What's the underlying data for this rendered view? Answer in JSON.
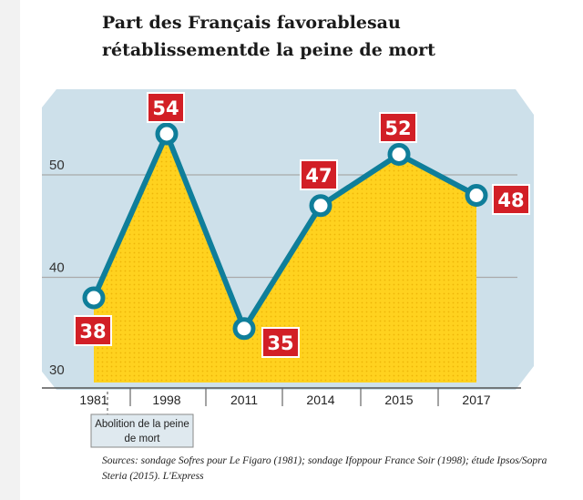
{
  "title": "Part des Français favorablesau rétablissementde la peine de mort",
  "source": "Sources: sondage Sofres pour Le Figaro (1981); sondage Ifoppour France Soir (1998); étude Ipsos/Sopra Steria (2015). L'Express",
  "colors": {
    "panel": "#cde0ea",
    "area": "#ffd21f",
    "line": "#0f7e9a",
    "label": "#d21f26",
    "grid": "#a9a9a9"
  },
  "chart_data": {
    "type": "area",
    "categories": [
      "1981",
      "1998",
      "2011",
      "2014",
      "2015",
      "2017"
    ],
    "values": [
      38,
      54,
      35,
      47,
      52,
      48
    ],
    "data_labels": [
      "38",
      "54",
      "35",
      "47",
      "52",
      "48"
    ],
    "yticks": [
      "30",
      "40",
      "50"
    ],
    "ylim": [
      30,
      56
    ],
    "grid": true,
    "annotation": "Abolition de la peine de mort"
  }
}
